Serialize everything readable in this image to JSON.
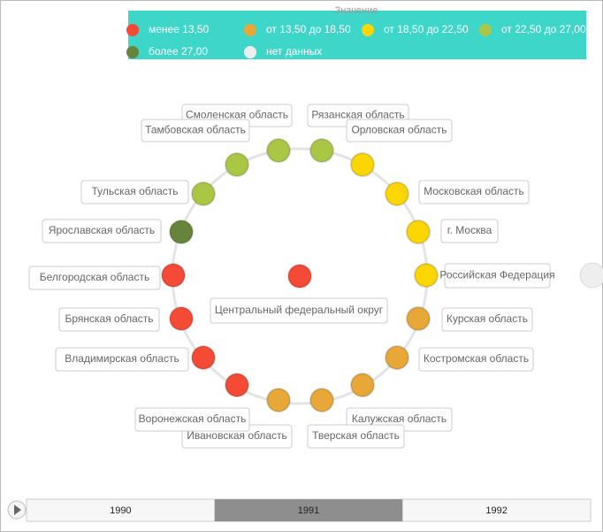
{
  "legend": {
    "title": "Значение",
    "items": [
      {
        "label": "менее 13,50",
        "color": "#f44a36"
      },
      {
        "label": "от 13,50 до 18,50",
        "color": "#e8a838"
      },
      {
        "label": "от 18,50 до 22,50",
        "color": "#fcd600"
      },
      {
        "label": "от 22,50 до 27,00",
        "color": "#a9c744"
      },
      {
        "label": "более 27,00",
        "color": "#66853a"
      },
      {
        "label": "нет данных",
        "color": "#eeeeee"
      }
    ]
  },
  "center": {
    "label": "Центральный федеральный округ",
    "color": "#f44a36"
  },
  "nodes": [
    {
      "label": "Смоленская область",
      "color": "#a9c744"
    },
    {
      "label": "Рязанская область",
      "color": "#a9c744"
    },
    {
      "label": "Орловская область",
      "color": "#fcd600"
    },
    {
      "label": "Московская область",
      "color": "#fcd600"
    },
    {
      "label": "г. Москва",
      "color": "#fcd600"
    },
    {
      "label": "Российская Федерация",
      "color": "#fcd600"
    },
    {
      "label": "Курская область",
      "color": "#e8a838"
    },
    {
      "label": "Костромская область",
      "color": "#e8a838"
    },
    {
      "label": "Калужская область",
      "color": "#e8a838"
    },
    {
      "label": "Тверская область",
      "color": "#e8a838"
    },
    {
      "label": "Ивановская область",
      "color": "#e8a838"
    },
    {
      "label": "Воронежская область",
      "color": "#f44a36"
    },
    {
      "label": "Владимирская область",
      "color": "#f44a36"
    },
    {
      "label": "Брянская область",
      "color": "#f44a36"
    },
    {
      "label": "Белгородская область",
      "color": "#f44a36"
    },
    {
      "label": "Ярославская область",
      "color": "#66853a"
    },
    {
      "label": "Тульская область",
      "color": "#a9c744"
    },
    {
      "label": "Тамбовская область",
      "color": "#a9c744"
    }
  ],
  "timeline": {
    "years": [
      "1990",
      "1991",
      "1992"
    ],
    "selected": 1
  }
}
